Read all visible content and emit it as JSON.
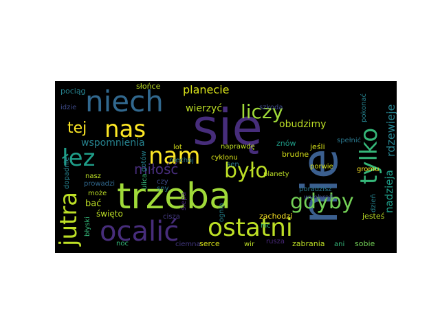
{
  "wordcloud": {
    "background": "#000000",
    "words": [
      {
        "text": "nie",
        "color": "#3b5f8f"
      },
      {
        "text": "się",
        "color": "#472d7b"
      },
      {
        "text": "trzeba",
        "color": "#a0da39"
      },
      {
        "text": "niech",
        "color": "#31688e"
      },
      {
        "text": "ocalić",
        "color": "#472d7b"
      },
      {
        "text": "ostatni",
        "color": "#bddf26"
      },
      {
        "text": "jutra",
        "color": "#bddf26"
      },
      {
        "text": "tylko",
        "color": "#35b779"
      },
      {
        "text": "nam",
        "color": "#fde725"
      },
      {
        "text": "nas",
        "color": "#fde725"
      },
      {
        "text": "łez",
        "color": "#1f9e89"
      },
      {
        "text": "gdyby",
        "color": "#73d056"
      },
      {
        "text": "było",
        "color": "#bddf26"
      },
      {
        "text": "liczy",
        "color": "#a0da39"
      },
      {
        "text": "tej",
        "color": "#fde725"
      },
      {
        "text": "miłość",
        "color": "#472d7b"
      },
      {
        "text": "planecie",
        "color": "#d8e219"
      },
      {
        "text": "rdzewieje",
        "color": "#26828e"
      },
      {
        "text": "nadzieja",
        "color": "#1f9e89"
      },
      {
        "text": "wierzyć",
        "color": "#bddf26"
      },
      {
        "text": "obudzimy",
        "color": "#bddf26"
      },
      {
        "text": "wspomnienia",
        "color": "#26828e"
      },
      {
        "text": "pociąg",
        "color": "#26828e"
      },
      {
        "text": "słońce",
        "color": "#bddf26"
      },
      {
        "text": "idzie",
        "color": "#3e4a89"
      },
      {
        "text": "szkoda",
        "color": "#3e4a89"
      },
      {
        "text": "pokonać",
        "color": "#26828e"
      },
      {
        "text": "spełnić",
        "color": "#2a788e"
      },
      {
        "text": "lot",
        "color": "#d8e219"
      },
      {
        "text": "niechaj",
        "color": "#2a788e"
      },
      {
        "text": "naprawdę",
        "color": "#bddf26"
      },
      {
        "text": "znów",
        "color": "#1f9e89"
      },
      {
        "text": "jeśli",
        "color": "#d8e219"
      },
      {
        "text": "brudne",
        "color": "#d8e219"
      },
      {
        "text": "cyklonu",
        "color": "#d8e219"
      },
      {
        "text": "sen",
        "color": "#2a788e"
      },
      {
        "text": "porwie",
        "color": "#d8e219"
      },
      {
        "text": "gromu",
        "color": "#fde725"
      },
      {
        "text": "planety",
        "color": "#bddf26"
      },
      {
        "text": "dopadnie",
        "color": "#26828e"
      },
      {
        "text": "gotów",
        "color": "#26828e"
      },
      {
        "text": "ulica",
        "color": "#35b779"
      },
      {
        "text": "nasz",
        "color": "#bddf26"
      },
      {
        "text": "prowadzi",
        "color": "#31688e"
      },
      {
        "text": "czy",
        "color": "#3e4a89"
      },
      {
        "text": "sny",
        "color": "#2a788e"
      },
      {
        "text": "bać",
        "color": "#bddf26"
      },
      {
        "text": "może",
        "color": "#bddf26"
      },
      {
        "text": "święto",
        "color": "#bddf26"
      },
      {
        "text": "cisza",
        "color": "#443983"
      },
      {
        "text": "ślepa",
        "color": "#482878"
      },
      {
        "text": "ognia",
        "color": "#26828e"
      },
      {
        "text": "zachodzi",
        "color": "#fde725"
      },
      {
        "text": "nic",
        "color": "#35b779"
      },
      {
        "text": "wyobraź",
        "color": "#3e4a89"
      },
      {
        "text": "poradzisz",
        "color": "#2a788e"
      },
      {
        "text": "dzień",
        "color": "#26828e"
      },
      {
        "text": "jesteś",
        "color": "#bddf26"
      },
      {
        "text": "błyski",
        "color": "#35b779"
      },
      {
        "text": "noc",
        "color": "#35b779"
      },
      {
        "text": "ciemna",
        "color": "#443983"
      },
      {
        "text": "serce",
        "color": "#d8e219"
      },
      {
        "text": "wir",
        "color": "#bddf26"
      },
      {
        "text": "rusza",
        "color": "#482878"
      },
      {
        "text": "zabrania",
        "color": "#bddf26"
      },
      {
        "text": "ani",
        "color": "#35b779"
      },
      {
        "text": "sobie",
        "color": "#73d056"
      }
    ]
  }
}
